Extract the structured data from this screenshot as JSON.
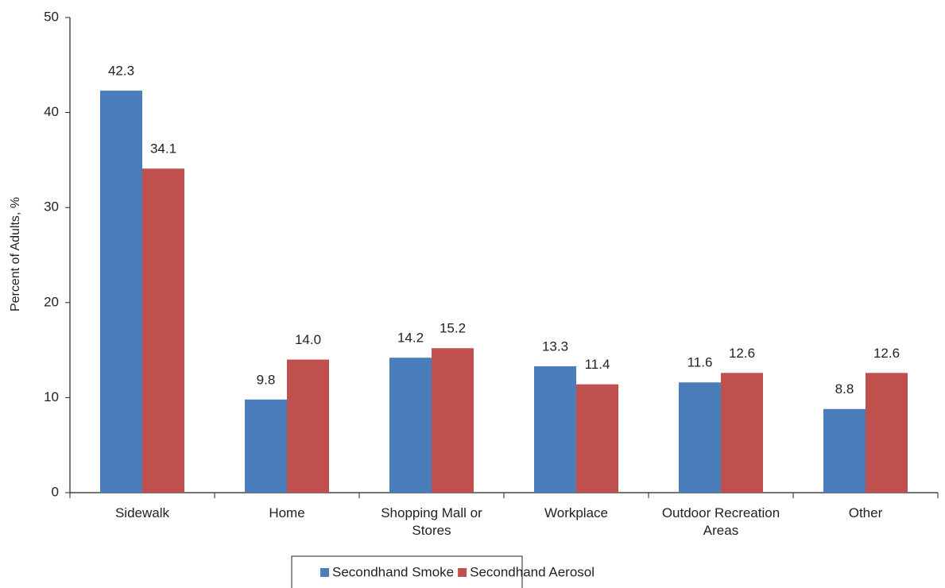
{
  "chart_data": {
    "type": "bar",
    "y_label": "Percent of Adults, %",
    "categories": [
      "Sidewalk",
      "Home",
      "Shopping Mall or Stores",
      "Workplace",
      "Outdoor Recreation Areas",
      "Other"
    ],
    "series": [
      {
        "name": "Secondhand Smoke",
        "color": "#4a7ebb",
        "values": [
          42.3,
          9.8,
          14.2,
          13.3,
          11.6,
          8.8
        ]
      },
      {
        "name": "Secondhand Aerosol",
        "color": "#c0504d",
        "values": [
          34.1,
          14.0,
          15.2,
          11.4,
          12.6,
          12.6
        ],
        "value_labels": [
          "34.1",
          "14.0",
          "15.2",
          "11.4",
          "12.6",
          "12.6"
        ]
      }
    ],
    "ylim": [
      0,
      50
    ],
    "yticks": [
      0,
      10,
      20,
      30,
      40,
      50
    ]
  }
}
